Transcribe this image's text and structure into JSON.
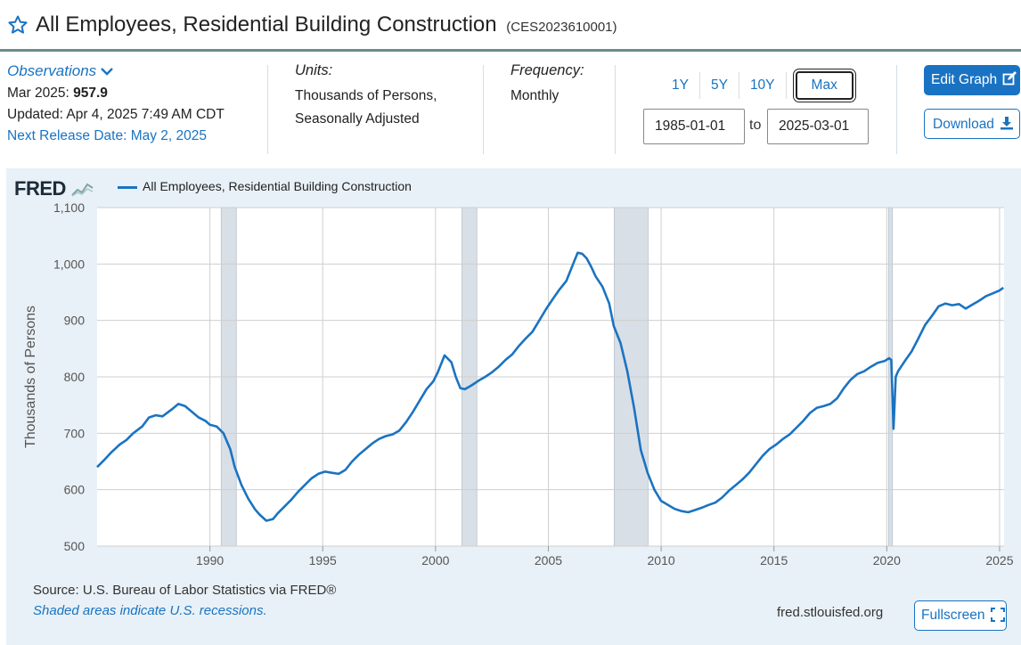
{
  "header": {
    "title": "All Employees, Residential Building Construction",
    "series_id": "(CES2023610001)"
  },
  "meta": {
    "observations_label": "Observations",
    "obs_date": "Mar 2025:",
    "obs_value": "957.9",
    "updated": "Updated: Apr 4, 2025 7:49 AM CDT",
    "next_release": "Next Release Date: May 2, 2025",
    "units_label": "Units:",
    "units_line1": "Thousands of Persons,",
    "units_line2": "Seasonally Adjusted",
    "frequency_label": "Frequency:",
    "frequency_value": "Monthly"
  },
  "range": {
    "buttons": [
      "1Y",
      "5Y",
      "10Y",
      "Max"
    ],
    "selected": "Max",
    "start": "1985-01-01",
    "end": "2025-03-01",
    "to_label": "to"
  },
  "actions": {
    "edit_graph": "Edit Graph",
    "download": "Download",
    "fullscreen": "Fullscreen"
  },
  "footer": {
    "source": "Source: U.S. Bureau of Labor Statistics via FRED®",
    "shaded_note": "Shaded areas indicate U.S. recessions.",
    "url": "fred.stlouisfed.org"
  },
  "logo_text": "FRED",
  "colors": {
    "accent": "#1a73c2",
    "recession": "#d9dfe6",
    "panel": "#e8f1f7"
  },
  "chart_data": {
    "type": "line",
    "legend": "All Employees, Residential Building Construction",
    "ylabel": "Thousands of Persons",
    "ylim": [
      500,
      1100
    ],
    "yticks": [
      500,
      600,
      700,
      800,
      900,
      1000,
      1100
    ],
    "ytick_labels": [
      "500",
      "600",
      "700",
      "800",
      "900",
      "1,000",
      "1,100"
    ],
    "xlim": [
      1985.0,
      2025.2
    ],
    "xticks": [
      1990,
      1995,
      2000,
      2005,
      2010,
      2015,
      2020,
      2025
    ],
    "recessions": [
      [
        1990.5,
        1991.17
      ],
      [
        2001.17,
        2001.83
      ],
      [
        2007.92,
        2009.42
      ],
      [
        2020.08,
        2020.25
      ]
    ],
    "series": [
      {
        "name": "All Employees, Residential Building Construction",
        "x": [
          1985.0,
          1985.3,
          1985.6,
          1986.0,
          1986.3,
          1986.6,
          1987.0,
          1987.3,
          1987.6,
          1987.9,
          1988.3,
          1988.6,
          1988.9,
          1989.2,
          1989.5,
          1989.8,
          1990.0,
          1990.3,
          1990.6,
          1990.9,
          1991.1,
          1991.4,
          1991.7,
          1992.0,
          1992.2,
          1992.5,
          1992.8,
          1993.0,
          1993.3,
          1993.6,
          1993.9,
          1994.2,
          1994.5,
          1994.8,
          1995.1,
          1995.4,
          1995.7,
          1996.0,
          1996.3,
          1996.6,
          1996.9,
          1997.2,
          1997.5,
          1997.8,
          1998.1,
          1998.4,
          1998.7,
          1999.0,
          1999.3,
          1999.6,
          1999.9,
          2000.1,
          2000.4,
          2000.7,
          2000.9,
          2001.1,
          2001.3,
          2001.6,
          2001.9,
          2002.2,
          2002.5,
          2002.8,
          2003.1,
          2003.4,
          2003.7,
          2004.0,
          2004.3,
          2004.6,
          2004.9,
          2005.2,
          2005.5,
          2005.8,
          2006.1,
          2006.3,
          2006.5,
          2006.7,
          2006.9,
          2007.1,
          2007.4,
          2007.7,
          2007.9,
          2008.2,
          2008.5,
          2008.8,
          2009.1,
          2009.4,
          2009.7,
          2010.0,
          2010.3,
          2010.6,
          2010.9,
          2011.2,
          2011.5,
          2011.8,
          2012.1,
          2012.4,
          2012.7,
          2013.0,
          2013.3,
          2013.6,
          2013.9,
          2014.2,
          2014.5,
          2014.8,
          2015.1,
          2015.4,
          2015.7,
          2016.0,
          2016.3,
          2016.6,
          2016.9,
          2017.2,
          2017.5,
          2017.8,
          2018.1,
          2018.4,
          2018.7,
          2019.0,
          2019.3,
          2019.6,
          2019.9,
          2020.1,
          2020.2,
          2020.3,
          2020.4,
          2020.5,
          2020.8,
          2021.1,
          2021.4,
          2021.7,
          2022.0,
          2022.3,
          2022.6,
          2022.9,
          2023.2,
          2023.5,
          2023.8,
          2024.1,
          2024.4,
          2024.7,
          2025.0,
          2025.17
        ],
        "values": [
          640,
          652,
          665,
          680,
          688,
          700,
          712,
          728,
          732,
          730,
          742,
          752,
          748,
          738,
          728,
          722,
          715,
          712,
          700,
          672,
          640,
          608,
          584,
          565,
          556,
          545,
          548,
          558,
          570,
          582,
          596,
          608,
          620,
          628,
          632,
          630,
          628,
          635,
          650,
          662,
          672,
          682,
          690,
          695,
          698,
          705,
          720,
          738,
          758,
          778,
          792,
          808,
          838,
          826,
          800,
          780,
          778,
          785,
          793,
          800,
          808,
          818,
          830,
          840,
          855,
          868,
          880,
          900,
          920,
          938,
          955,
          970,
          1000,
          1020,
          1018,
          1010,
          995,
          978,
          960,
          930,
          890,
          860,
          810,
          745,
          670,
          630,
          600,
          580,
          573,
          566,
          562,
          560,
          564,
          568,
          573,
          577,
          586,
          598,
          608,
          618,
          630,
          645,
          660,
          672,
          680,
          690,
          698,
          710,
          722,
          736,
          745,
          748,
          752,
          762,
          780,
          795,
          805,
          810,
          818,
          825,
          828,
          833,
          830,
          708,
          800,
          810,
          828,
          845,
          868,
          892,
          908,
          925,
          930,
          927,
          929,
          921,
          928,
          935,
          943,
          948,
          953,
          958
        ]
      }
    ]
  }
}
